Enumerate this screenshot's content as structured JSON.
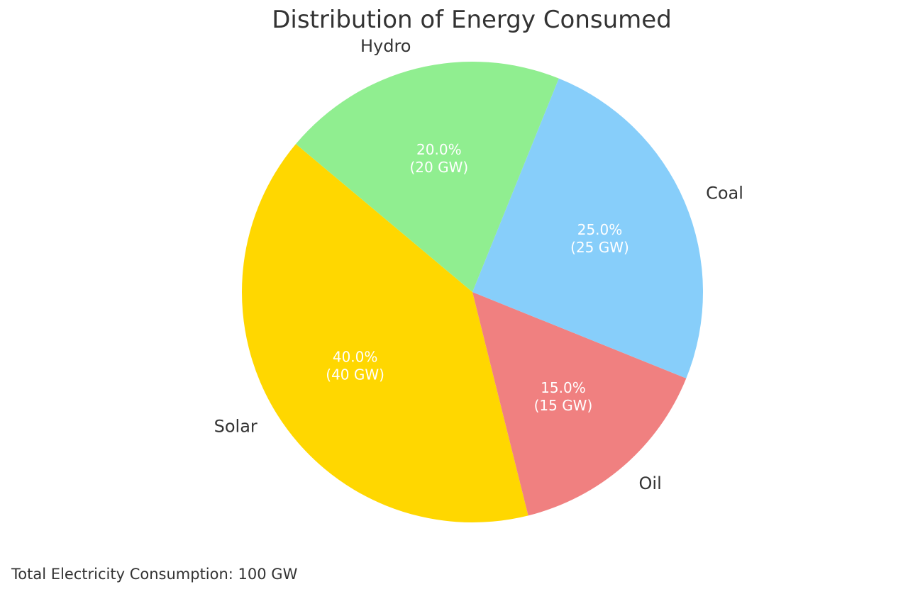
{
  "footer_note": "Total Electricity Consumption: 100 GW",
  "chart_data": {
    "type": "pie",
    "title": "Distribution of Energy Consumed",
    "unit": "GW",
    "start_angle_deg": 140,
    "direction": "counterclockwise",
    "slices": [
      {
        "label": "Solar",
        "value": 40,
        "percent": "40.0%",
        "value_label": "(40 GW)",
        "color": "#FFD700"
      },
      {
        "label": "Oil",
        "value": 15,
        "percent": "15.0%",
        "value_label": "(15 GW)",
        "color": "#F08080"
      },
      {
        "label": "Coal",
        "value": 25,
        "percent": "25.0%",
        "value_label": "(25 GW)",
        "color": "#87CEFA"
      },
      {
        "label": "Hydro",
        "value": 20,
        "percent": "20.0%",
        "value_label": "(20 GW)",
        "color": "#90EE90"
      }
    ]
  }
}
